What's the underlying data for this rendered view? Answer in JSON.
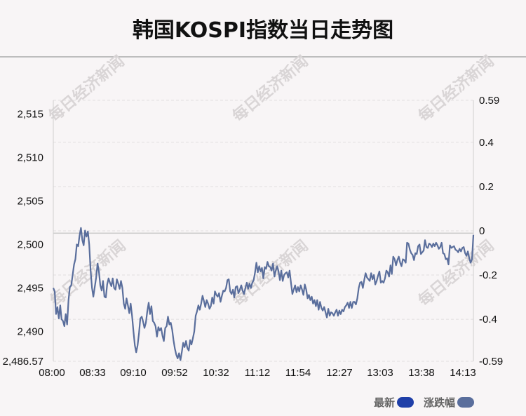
{
  "chart_data": {
    "type": "line",
    "title": "韩国KOSPI指数当日走势图",
    "x_ticks": [
      "08:00",
      "08:33",
      "09:10",
      "09:52",
      "10:32",
      "11:12",
      "11:54",
      "12:27",
      "13:03",
      "13:38",
      "14:13"
    ],
    "y_left_ticks": [
      "2,486.57",
      "2,490",
      "2,495",
      "2,500",
      "2,505",
      "2,510",
      "2,515"
    ],
    "y_left_range": [
      2486.57,
      2516.57
    ],
    "y_right_ticks": [
      "-0.59",
      "-0.4",
      "-0.2",
      "0",
      "0.2",
      "0.4",
      "0.59"
    ],
    "y_right_range": [
      -0.59,
      0.59
    ],
    "baseline": 2501.3,
    "grid": true,
    "line_color": "#5a6e9c",
    "series": [
      {
        "values": [
          2495.0,
          2494.6,
          2492.0,
          2492.8,
          2491.5,
          2493.0,
          2491.4,
          2491.2,
          2490.6,
          2492.0,
          2490.8,
          2493.6,
          2495.1,
          2495.3,
          2496.5,
          2497.7,
          2498.3,
          2500.0,
          2499.8,
          2501.0,
          2501.9,
          2500.5,
          2499.9,
          2501.6,
          2500.9,
          2501.5,
          2500.0,
          2497.0,
          2495.0,
          2494.0,
          2495.1,
          2496.2,
          2497.8,
          2496.9,
          2495.3,
          2494.7,
          2495.8,
          2494.0,
          2493.9,
          2495.4,
          2496.1,
          2495.6,
          2495.2,
          2496.1,
          2495.0,
          2494.8,
          2496.0,
          2495.5,
          2494.9,
          2495.8,
          2495.0,
          2493.2,
          2492.6,
          2493.8,
          2493.0,
          2492.1,
          2493.2,
          2491.8,
          2490.0,
          2488.4,
          2487.6,
          2488.4,
          2489.8,
          2491.5,
          2491.7,
          2491.1,
          2490.4,
          2491.0,
          2492.3,
          2493.3,
          2492.0,
          2492.9,
          2491.2,
          2491.0,
          2490.6,
          2489.4,
          2490.5,
          2490.1,
          2490.4,
          2489.5,
          2488.9,
          2490.4,
          2490.6,
          2491.7,
          2490.8,
          2491.0,
          2490.2,
          2489.0,
          2488.0,
          2487.3,
          2486.9,
          2487.5,
          2486.7,
          2487.6,
          2488.7,
          2488.2,
          2488.9,
          2488.1,
          2487.8,
          2489.0,
          2488.5,
          2489.2,
          2490.0,
          2491.8,
          2492.3,
          2493.0,
          2492.5,
          2493.2,
          2494.1,
          2493.5,
          2492.8,
          2493.6,
          2493.2,
          2492.6,
          2492.9,
          2493.9,
          2493.2,
          2494.6,
          2494.2,
          2494.0,
          2494.4,
          2493.4,
          2494.1,
          2494.7,
          2494.6,
          2495.0,
          2495.9,
          2496.0,
          2494.6,
          2494.3,
          2494.8,
          2493.9,
          2495.1,
          2495.2,
          2494.4,
          2494.8,
          2495.3,
          2494.7,
          2494.3,
          2495.0,
          2495.6,
          2494.9,
          2495.5,
          2495.0,
          2495.6,
          2495.9,
          2496.8,
          2497.9,
          2496.8,
          2497.5,
          2496.9,
          2497.3,
          2496.1,
          2497.4,
          2497.2,
          2498.0,
          2497.5,
          2497.4,
          2497.0,
          2497.8,
          2496.3,
          2497.0,
          2497.5,
          2496.9,
          2495.9,
          2497.0,
          2495.8,
          2496.5,
          2496.7,
          2496.8,
          2496.2,
          2497.0,
          2495.6,
          2494.3,
          2494.8,
          2495.3,
          2494.5,
          2495.1,
          2494.6,
          2495.3,
          2494.8,
          2494.2,
          2495.4,
          2494.8,
          2493.8,
          2494.2,
          2493.6,
          2494.0,
          2493.2,
          2493.6,
          2492.9,
          2493.6,
          2492.5,
          2493.4,
          2492.7,
          2492.4,
          2492.8,
          2492.2,
          2491.6,
          2492.6,
          2491.8,
          2492.2,
          2492.1,
          2491.8,
          2492.2,
          2492.5,
          2491.8,
          2492.4,
          2492.0,
          2492.5,
          2492.3,
          2492.8,
          2493.0,
          2493.3,
          2492.7,
          2493.4,
          2492.7,
          2493.4,
          2493.4,
          2493.1,
          2493.8,
          2495.0,
          2495.6,
          2495.7,
          2495.0,
          2495.9,
          2496.7,
          2496.2,
          2496.0,
          2495.8,
          2496.7,
          2496.0,
          2496.5,
          2495.4,
          2495.8,
          2496.4,
          2496.9,
          2495.6,
          2495.8,
          2495.6,
          2496.1,
          2497.0,
          2496.8,
          2496.3,
          2497.6,
          2496.6,
          2498.6,
          2498.3,
          2497.6,
          2498.2,
          2498.6,
          2497.9,
          2497.5,
          2498.3,
          2498.2,
          2497.9,
          2500.2,
          2500.1,
          2499.4,
          2499.0,
          2498.8,
          2498.2,
          2499.0,
          2498.9,
          2499.8,
          2500.0,
          2498.9,
          2499.1,
          2499.3,
          2500.5,
          2499.7,
          2499.6,
          2500.1,
          2500.0,
          2499.7,
          2500.1,
          2499.8,
          2500.2,
          2499.9,
          2499.5,
          2499.7,
          2500.2,
          2499.0,
          2498.9,
          2498.3,
          2498.4,
          2497.7,
          2499.9,
          2499.6,
          2499.7,
          2499.8,
          2499.4,
          2499.3,
          2499.1,
          2499.5,
          2499.2,
          2499.6,
          2499.7,
          2499.0,
          2498.7,
          2499.2,
          2498.4,
          2497.9,
          2498.3,
          2501.1
        ]
      }
    ]
  },
  "legend": [
    {
      "label": "最新",
      "color": "#1f3fa8"
    },
    {
      "label": "涨跌幅",
      "color": "#5a6e9c"
    }
  ],
  "watermark": "每日经济新闻"
}
